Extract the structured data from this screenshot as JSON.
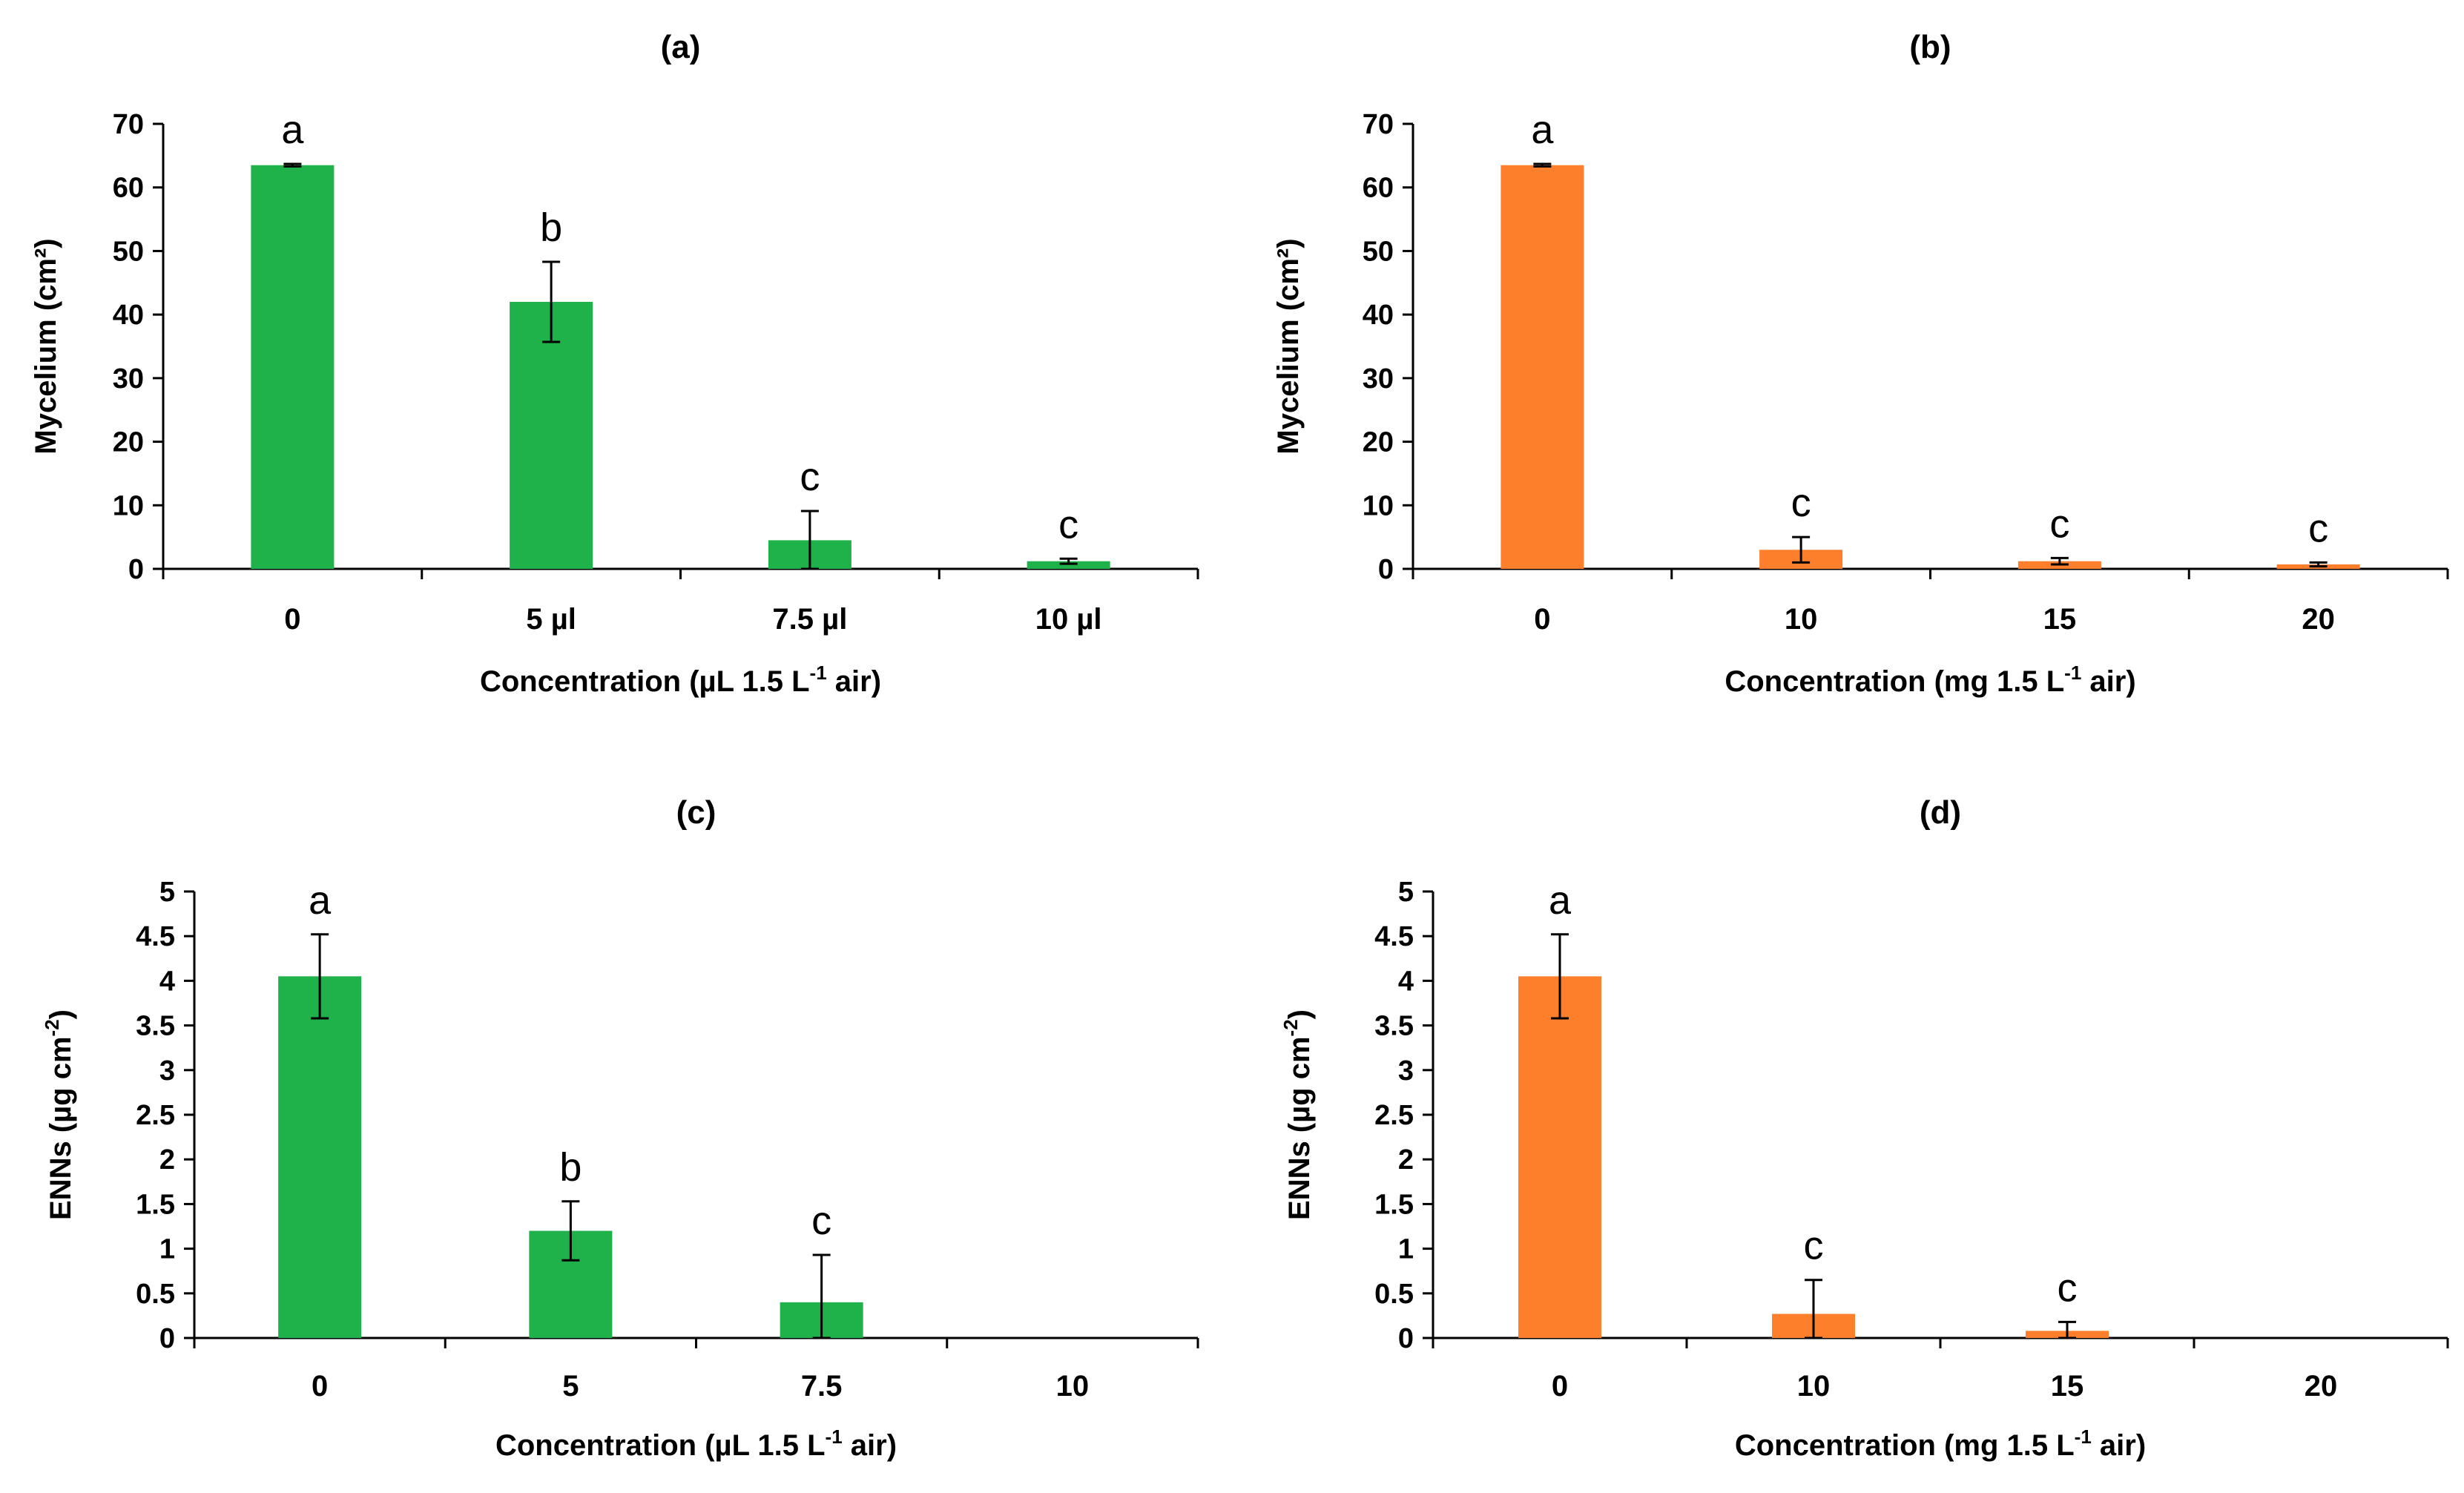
{
  "chart_data": [
    {
      "id": "a",
      "type": "bar",
      "title": "(a)",
      "ylabel": "Mycelium (cm²)",
      "xlabel_main": "Concentration (µL 1.5 L",
      "xlabel_sup": "-1",
      "xlabel_tail": " air)",
      "ylim": [
        0,
        70
      ],
      "yticks": [
        0,
        10,
        20,
        30,
        40,
        50,
        60,
        70
      ],
      "ytick_labels": [
        "0",
        "10",
        "20",
        "30",
        "40",
        "50",
        "60",
        "70"
      ],
      "categories": [
        "0",
        "5 µl",
        "7.5 µl",
        "10 µl"
      ],
      "values": [
        63.5,
        42,
        4.5,
        1.2
      ],
      "errors": [
        0.2,
        6.3,
        4.6,
        0.4
      ],
      "letters": [
        "a",
        "b",
        "c",
        "c"
      ],
      "color": "#1fb14a"
    },
    {
      "id": "b",
      "type": "bar",
      "title": "(b)",
      "ylabel": "Mycelium (cm²)",
      "xlabel_main": "Concentration (mg 1.5 L",
      "xlabel_sup": "-1",
      "xlabel_tail": " air)",
      "ylim": [
        0,
        70
      ],
      "yticks": [
        0,
        10,
        20,
        30,
        40,
        50,
        60,
        70
      ],
      "ytick_labels": [
        "0",
        "10",
        "20",
        "30",
        "40",
        "50",
        "60",
        "70"
      ],
      "categories": [
        "0",
        "10",
        "15",
        "20"
      ],
      "values": [
        63.5,
        3,
        1.2,
        0.7
      ],
      "errors": [
        0.2,
        2,
        0.5,
        0.3
      ],
      "letters": [
        "a",
        "c",
        "c",
        "c"
      ],
      "color": "#fd7f2b"
    },
    {
      "id": "c",
      "type": "bar",
      "title": "(c)",
      "ylabel_main": "ENNs (µg cm",
      "ylabel_sup": "-2",
      "ylabel_tail": ")",
      "xlabel_main": "Concentration (µL 1.5 L",
      "xlabel_sup": "-1",
      "xlabel_tail": " air)",
      "ylim": [
        0,
        5
      ],
      "yticks": [
        0,
        0.5,
        1,
        1.5,
        2,
        2.5,
        3,
        3.5,
        4,
        4.5,
        5
      ],
      "ytick_labels": [
        "0",
        "0.5",
        "1",
        "1.5",
        "2",
        "2.5",
        "3",
        "3.5",
        "4",
        "4.5",
        "5"
      ],
      "categories": [
        "0",
        "5",
        "7.5",
        "10"
      ],
      "values": [
        4.05,
        1.2,
        0.4,
        0
      ],
      "errors": [
        0.47,
        0.33,
        0.53,
        0
      ],
      "letters": [
        "a",
        "b",
        "c",
        ""
      ],
      "color": "#1fb14a"
    },
    {
      "id": "d",
      "type": "bar",
      "title": "(d)",
      "ylabel_main": "ENNs (µg cm",
      "ylabel_sup": "-2",
      "ylabel_tail": ")",
      "xlabel_main": "Concentration (mg 1.5 L",
      "xlabel_sup": "-1",
      "xlabel_tail": " air)",
      "ylim": [
        0,
        5
      ],
      "yticks": [
        0,
        0.5,
        1,
        1.5,
        2,
        2.5,
        3,
        3.5,
        4,
        4.5,
        5
      ],
      "ytick_labels": [
        "0",
        "0.5",
        "1",
        "1.5",
        "2",
        "2.5",
        "3",
        "3.5",
        "4",
        "4.5",
        "5"
      ],
      "categories": [
        "0",
        "10",
        "15",
        "20"
      ],
      "values": [
        4.05,
        0.27,
        0.08,
        0
      ],
      "errors": [
        0.47,
        0.38,
        0.1,
        0
      ],
      "letters": [
        "a",
        "c",
        "c",
        ""
      ],
      "color": "#fd7f2b"
    }
  ]
}
